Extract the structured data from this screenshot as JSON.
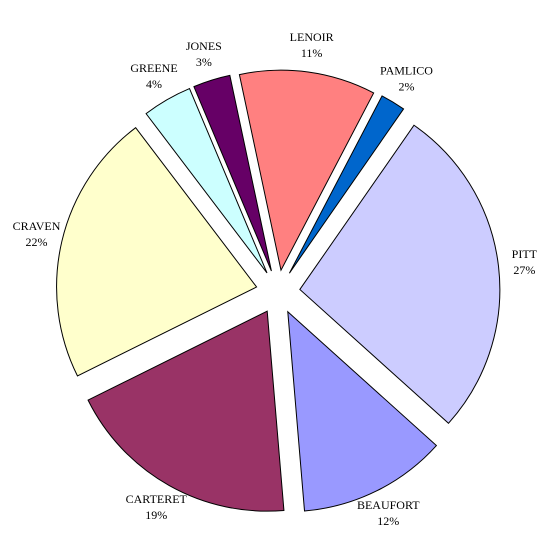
{
  "chart_data": {
    "type": "pie",
    "categories": [
      "LENOIR",
      "PAMLICO",
      "PITT",
      "BEAUFORT",
      "CARTERET",
      "CRAVEN",
      "GREENE",
      "JONES"
    ],
    "values": [
      11,
      2,
      27,
      12,
      19,
      22,
      4,
      3
    ],
    "value_labels": [
      "11%",
      "2%",
      "27%",
      "12%",
      "19%",
      "22%",
      "4%",
      "3%"
    ],
    "colors": [
      "#ff8080",
      "#0066cc",
      "#ccccff",
      "#9999ff",
      "#993366",
      "#ffffcc",
      "#ccffff",
      "#660066"
    ],
    "exploded": true
  }
}
